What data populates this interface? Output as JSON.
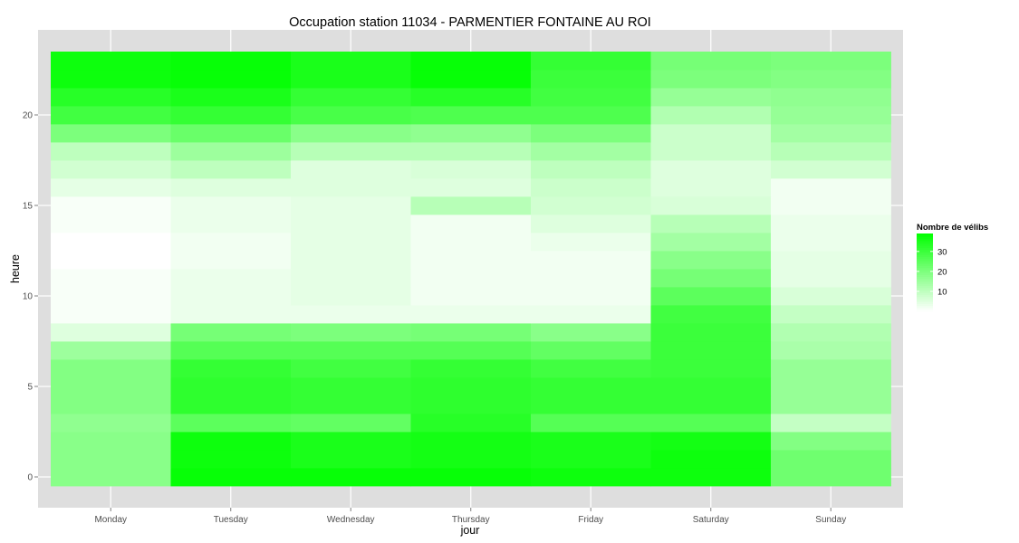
{
  "chart_data": {
    "type": "heatmap",
    "title": "Occupation station 11034 - PARMENTIER FONTAINE AU ROI",
    "xlabel": "jour",
    "ylabel": "heure",
    "x_categories": [
      "Monday",
      "Tuesday",
      "Wednesday",
      "Thursday",
      "Friday",
      "Saturday",
      "Sunday"
    ],
    "y_hours": [
      0,
      1,
      2,
      3,
      4,
      5,
      6,
      7,
      8,
      9,
      10,
      11,
      12,
      13,
      14,
      15,
      16,
      17,
      18,
      19,
      20,
      21,
      22,
      23
    ],
    "y_ticks": [
      0,
      5,
      10,
      15,
      20
    ],
    "values": [
      [
        18,
        38,
        38,
        38,
        37,
        37,
        22
      ],
      [
        18,
        37,
        35,
        36,
        35,
        37,
        22
      ],
      [
        18,
        37,
        35,
        36,
        35,
        36,
        19
      ],
      [
        17,
        25,
        24,
        33,
        26,
        26,
        9
      ],
      [
        19,
        32,
        31,
        32,
        31,
        31,
        16
      ],
      [
        19,
        32,
        31,
        32,
        31,
        31,
        16
      ],
      [
        19,
        31,
        29,
        31,
        29,
        30,
        16
      ],
      [
        15,
        26,
        26,
        26,
        24,
        30,
        13
      ],
      [
        5,
        21,
        20,
        21,
        18,
        30,
        12
      ],
      [
        1,
        3,
        3,
        3,
        3,
        29,
        9
      ],
      [
        1,
        3,
        4,
        2,
        2,
        25,
        6
      ],
      [
        1,
        3,
        4,
        2,
        2,
        21,
        4
      ],
      [
        0,
        2,
        4,
        2,
        2,
        18,
        4
      ],
      [
        0,
        2,
        4,
        2,
        3,
        14,
        3
      ],
      [
        1,
        3,
        4,
        2,
        5,
        11,
        3
      ],
      [
        1,
        3,
        4,
        11,
        7,
        6,
        2
      ],
      [
        4,
        5,
        5,
        5,
        8,
        5,
        2
      ],
      [
        7,
        10,
        5,
        6,
        10,
        5,
        7
      ],
      [
        10,
        15,
        11,
        11,
        14,
        8,
        11
      ],
      [
        20,
        23,
        18,
        17,
        20,
        8,
        14
      ],
      [
        29,
        31,
        28,
        27,
        27,
        12,
        16
      ],
      [
        33,
        35,
        31,
        33,
        29,
        16,
        17
      ],
      [
        37,
        38,
        35,
        38,
        30,
        20,
        19
      ],
      [
        37,
        38,
        35,
        38,
        31,
        21,
        20
      ]
    ],
    "value_range": [
      0,
      39
    ],
    "color_low": "#ffffff",
    "color_high": "#00ff00",
    "legend": {
      "title": "Nombre de vélibs",
      "ticks": [
        10,
        20,
        30
      ],
      "position": "right"
    },
    "panel_background": "#dedede",
    "grid": true
  }
}
